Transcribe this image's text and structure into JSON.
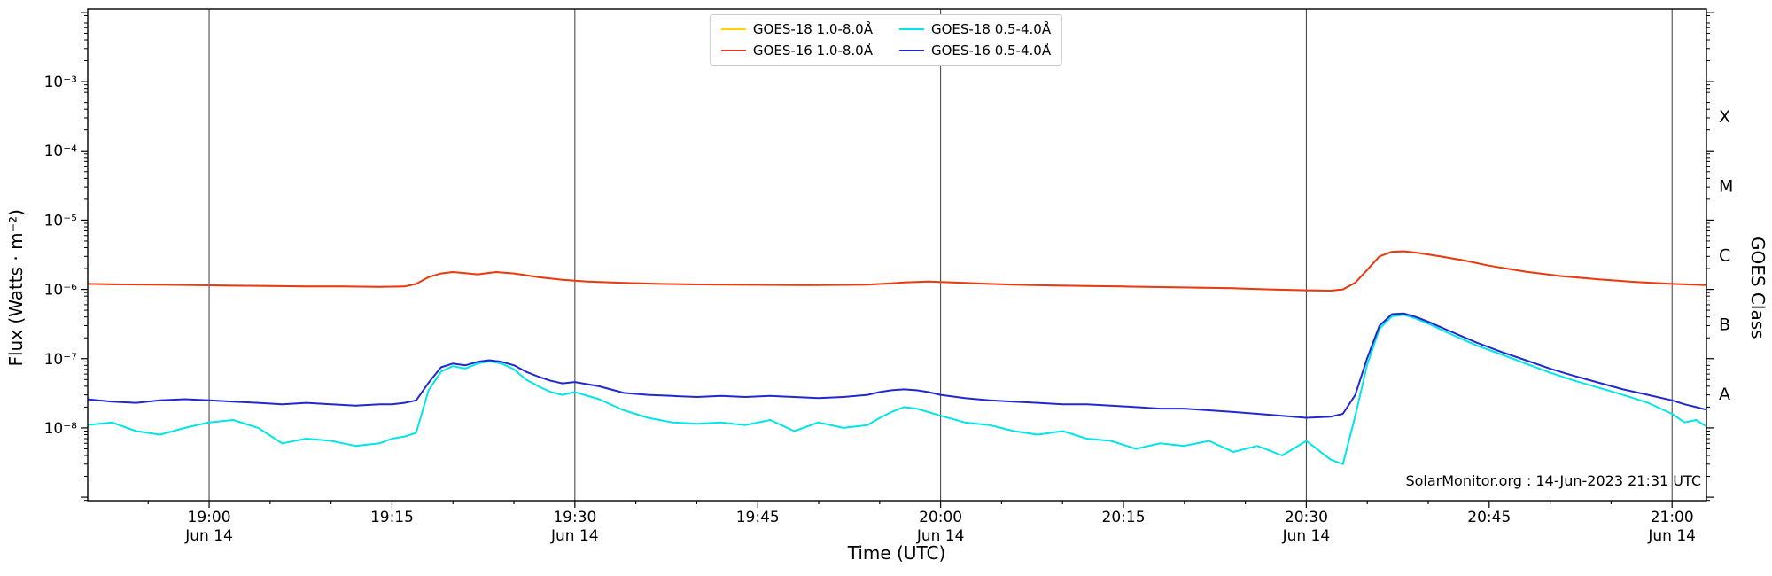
{
  "annotation": "SolarMonitor.org : 14-Jun-2023 21:31 UTC",
  "axes": {
    "x_label": "Time (UTC)",
    "y_label": "Flux (Watts · m⁻²)",
    "y_right_label": "GOES Class",
    "x_ticks": [
      {
        "t": 19.0,
        "label": "19:00",
        "sub": "Jun 14"
      },
      {
        "t": 19.25,
        "label": "19:15",
        "sub": ""
      },
      {
        "t": 19.5,
        "label": "19:30",
        "sub": "Jun 14"
      },
      {
        "t": 19.75,
        "label": "19:45",
        "sub": ""
      },
      {
        "t": 20.0,
        "label": "20:00",
        "sub": "Jun 14"
      },
      {
        "t": 20.25,
        "label": "20:15",
        "sub": ""
      },
      {
        "t": 20.5,
        "label": "20:30",
        "sub": "Jun 14"
      },
      {
        "t": 20.75,
        "label": "20:45",
        "sub": ""
      },
      {
        "t": 21.0,
        "label": "21:00",
        "sub": "Jun 14"
      }
    ],
    "y_ticks": [
      {
        "exp": -3,
        "label": "10⁻³"
      },
      {
        "exp": -4,
        "label": "10⁻⁴"
      },
      {
        "exp": -5,
        "label": "10⁻⁵"
      },
      {
        "exp": -6,
        "label": "10⁻⁶"
      },
      {
        "exp": -7,
        "label": "10⁻⁷"
      },
      {
        "exp": -8,
        "label": "10⁻⁸"
      }
    ],
    "class_labels": [
      {
        "label": "X",
        "exp_mid": -3.5
      },
      {
        "label": "M",
        "exp_mid": -4.5
      },
      {
        "label": "C",
        "exp_mid": -5.5
      },
      {
        "label": "B",
        "exp_mid": -6.5
      },
      {
        "label": "A",
        "exp_mid": -7.5
      }
    ]
  },
  "chart_data": {
    "type": "line",
    "title": "",
    "xlabel": "Time (UTC)",
    "ylabel": "Flux (Watts · m⁻²)",
    "x_unit": "decimal_hours_utc_14_jun_2023",
    "xlim_hours": [
      18.834,
      21.047
    ],
    "ylog_lim": [
      -9.05,
      -1.95
    ],
    "x_gridlines": [
      19.0,
      19.5,
      20.0,
      20.5,
      21.0
    ],
    "grid": "vertical-only",
    "legend_position": "top-center",
    "series": [
      {
        "name": "GOES-18 1.0-8.0Å",
        "color": "#ffd400",
        "x": [
          18.833,
          18.883,
          18.933,
          18.983,
          19.033,
          19.083,
          19.133,
          19.183,
          19.233,
          19.267,
          19.283,
          19.3,
          19.317,
          19.333,
          19.35,
          19.367,
          19.392,
          19.417,
          19.45,
          19.483,
          19.517,
          19.567,
          19.617,
          19.667,
          19.717,
          19.767,
          19.817,
          19.867,
          19.9,
          19.933,
          19.95,
          19.967,
          19.983,
          20.0,
          20.033,
          20.067,
          20.1,
          20.15,
          20.2,
          20.25,
          20.3,
          20.35,
          20.4,
          20.45,
          20.5,
          20.533,
          20.55,
          20.567,
          20.583,
          20.6,
          20.617,
          20.633,
          20.65,
          20.683,
          20.717,
          20.75,
          20.8,
          20.85,
          20.9,
          20.95,
          21.0,
          21.05
        ],
        "y": [
          1.2e-06,
          1.18e-06,
          1.17e-06,
          1.15e-06,
          1.13e-06,
          1.12e-06,
          1.1e-06,
          1.1e-06,
          1.09e-06,
          1.1e-06,
          1.2e-06,
          1.5e-06,
          1.7e-06,
          1.78e-06,
          1.72e-06,
          1.65e-06,
          1.78e-06,
          1.7e-06,
          1.5e-06,
          1.38e-06,
          1.3e-06,
          1.24e-06,
          1.2e-06,
          1.18e-06,
          1.17e-06,
          1.16e-06,
          1.15e-06,
          1.16e-06,
          1.17e-06,
          1.22e-06,
          1.26e-06,
          1.28e-06,
          1.3e-06,
          1.28e-06,
          1.24e-06,
          1.2e-06,
          1.17e-06,
          1.14e-06,
          1.12e-06,
          1.1e-06,
          1.08e-06,
          1.06e-06,
          1.04e-06,
          1e-06,
          9.7e-07,
          9.6e-07,
          1e-06,
          1.25e-06,
          1.9e-06,
          3e-06,
          3.5e-06,
          3.55e-06,
          3.4e-06,
          3e-06,
          2.6e-06,
          2.2e-06,
          1.8e-06,
          1.55e-06,
          1.4e-06,
          1.28e-06,
          1.2e-06,
          1.15e-06
        ]
      },
      {
        "name": "GOES-16 1.0-8.0Å",
        "color": "#e8391f",
        "x": [
          18.833,
          18.883,
          18.933,
          18.983,
          19.033,
          19.083,
          19.133,
          19.183,
          19.233,
          19.267,
          19.283,
          19.3,
          19.317,
          19.333,
          19.35,
          19.367,
          19.392,
          19.417,
          19.45,
          19.483,
          19.517,
          19.567,
          19.617,
          19.667,
          19.717,
          19.767,
          19.817,
          19.867,
          19.9,
          19.933,
          19.95,
          19.967,
          19.983,
          20.0,
          20.033,
          20.067,
          20.1,
          20.15,
          20.2,
          20.25,
          20.3,
          20.35,
          20.4,
          20.45,
          20.5,
          20.533,
          20.55,
          20.567,
          20.583,
          20.6,
          20.617,
          20.633,
          20.65,
          20.683,
          20.717,
          20.75,
          20.8,
          20.85,
          20.9,
          20.95,
          21.0,
          21.05
        ],
        "y": [
          1.2e-06,
          1.18e-06,
          1.17e-06,
          1.15e-06,
          1.13e-06,
          1.12e-06,
          1.1e-06,
          1.1e-06,
          1.09e-06,
          1.1e-06,
          1.2e-06,
          1.5e-06,
          1.7e-06,
          1.78e-06,
          1.72e-06,
          1.65e-06,
          1.78e-06,
          1.7e-06,
          1.5e-06,
          1.38e-06,
          1.3e-06,
          1.24e-06,
          1.2e-06,
          1.18e-06,
          1.17e-06,
          1.16e-06,
          1.15e-06,
          1.16e-06,
          1.17e-06,
          1.22e-06,
          1.26e-06,
          1.28e-06,
          1.3e-06,
          1.28e-06,
          1.24e-06,
          1.2e-06,
          1.17e-06,
          1.14e-06,
          1.12e-06,
          1.1e-06,
          1.08e-06,
          1.06e-06,
          1.04e-06,
          1e-06,
          9.7e-07,
          9.6e-07,
          1e-06,
          1.25e-06,
          1.9e-06,
          3e-06,
          3.5e-06,
          3.55e-06,
          3.4e-06,
          3e-06,
          2.6e-06,
          2.2e-06,
          1.8e-06,
          1.55e-06,
          1.4e-06,
          1.28e-06,
          1.2e-06,
          1.15e-06
        ]
      },
      {
        "name": "GOES-18 0.5-4.0Å",
        "color": "#00e5e5",
        "x": [
          18.833,
          18.867,
          18.9,
          18.933,
          18.967,
          19.0,
          19.033,
          19.067,
          19.1,
          19.133,
          19.167,
          19.2,
          19.233,
          19.25,
          19.267,
          19.283,
          19.3,
          19.317,
          19.333,
          19.35,
          19.367,
          19.383,
          19.4,
          19.417,
          19.433,
          19.45,
          19.467,
          19.483,
          19.5,
          19.533,
          19.567,
          19.6,
          19.633,
          19.667,
          19.7,
          19.733,
          19.767,
          19.8,
          19.833,
          19.867,
          19.9,
          19.917,
          19.933,
          19.95,
          19.967,
          19.983,
          20.0,
          20.033,
          20.067,
          20.1,
          20.133,
          20.167,
          20.2,
          20.233,
          20.267,
          20.3,
          20.333,
          20.367,
          20.4,
          20.433,
          20.467,
          20.5,
          20.533,
          20.55,
          20.567,
          20.583,
          20.6,
          20.617,
          20.633,
          20.65,
          20.667,
          20.7,
          20.733,
          20.767,
          20.8,
          20.833,
          20.867,
          20.9,
          20.933,
          20.967,
          21.0,
          21.017,
          21.033,
          21.05
        ],
        "y": [
          1.1e-08,
          1.2e-08,
          9e-09,
          8e-09,
          1e-08,
          1.2e-08,
          1.3e-08,
          1e-08,
          6e-09,
          7e-09,
          6.5e-09,
          5.5e-09,
          6e-09,
          7e-09,
          7.5e-09,
          8.5e-09,
          3.5e-08,
          6.5e-08,
          7.8e-08,
          7.2e-08,
          8.5e-08,
          9.2e-08,
          8.5e-08,
          7e-08,
          5e-08,
          4e-08,
          3.3e-08,
          3e-08,
          3.3e-08,
          2.6e-08,
          1.8e-08,
          1.4e-08,
          1.2e-08,
          1.15e-08,
          1.2e-08,
          1.1e-08,
          1.3e-08,
          9e-09,
          1.2e-08,
          1e-08,
          1.1e-08,
          1.4e-08,
          1.7e-08,
          2e-08,
          1.9e-08,
          1.7e-08,
          1.5e-08,
          1.2e-08,
          1.1e-08,
          9e-09,
          8e-09,
          9e-09,
          7e-09,
          6.5e-09,
          5e-09,
          6e-09,
          5.5e-09,
          6.5e-09,
          4.5e-09,
          5.5e-09,
          4e-09,
          6.5e-09,
          3.5e-09,
          3e-09,
          1.5e-08,
          8e-08,
          2.7e-07,
          4.1e-07,
          4.3e-07,
          3.8e-07,
          3.2e-07,
          2.2e-07,
          1.55e-07,
          1.15e-07,
          8.5e-08,
          6.3e-08,
          4.8e-08,
          3.8e-08,
          3e-08,
          2.3e-08,
          1.6e-08,
          1.2e-08,
          1.3e-08,
          1e-08
        ]
      },
      {
        "name": "GOES-16 0.5-4.0Å",
        "color": "#2228cf",
        "x": [
          18.833,
          18.867,
          18.9,
          18.933,
          18.967,
          19.0,
          19.033,
          19.067,
          19.1,
          19.133,
          19.167,
          19.2,
          19.233,
          19.25,
          19.267,
          19.283,
          19.3,
          19.317,
          19.333,
          19.35,
          19.367,
          19.383,
          19.4,
          19.417,
          19.433,
          19.45,
          19.467,
          19.483,
          19.5,
          19.533,
          19.567,
          19.6,
          19.633,
          19.667,
          19.7,
          19.733,
          19.767,
          19.8,
          19.833,
          19.867,
          19.9,
          19.917,
          19.933,
          19.95,
          19.967,
          19.983,
          20.0,
          20.033,
          20.067,
          20.1,
          20.133,
          20.167,
          20.2,
          20.233,
          20.267,
          20.3,
          20.333,
          20.367,
          20.4,
          20.433,
          20.467,
          20.5,
          20.533,
          20.55,
          20.567,
          20.583,
          20.6,
          20.617,
          20.633,
          20.65,
          20.667,
          20.7,
          20.733,
          20.767,
          20.8,
          20.833,
          20.867,
          20.9,
          20.933,
          20.967,
          21.0,
          21.017,
          21.033,
          21.05
        ],
        "y": [
          2.6e-08,
          2.4e-08,
          2.3e-08,
          2.5e-08,
          2.6e-08,
          2.5e-08,
          2.4e-08,
          2.3e-08,
          2.2e-08,
          2.3e-08,
          2.2e-08,
          2.1e-08,
          2.2e-08,
          2.2e-08,
          2.3e-08,
          2.5e-08,
          4.5e-08,
          7.5e-08,
          8.5e-08,
          8e-08,
          9e-08,
          9.5e-08,
          9e-08,
          8e-08,
          6.5e-08,
          5.5e-08,
          4.8e-08,
          4.4e-08,
          4.6e-08,
          4e-08,
          3.2e-08,
          3e-08,
          2.9e-08,
          2.8e-08,
          2.9e-08,
          2.8e-08,
          2.9e-08,
          2.8e-08,
          2.7e-08,
          2.8e-08,
          3e-08,
          3.3e-08,
          3.5e-08,
          3.6e-08,
          3.5e-08,
          3.3e-08,
          3e-08,
          2.7e-08,
          2.5e-08,
          2.4e-08,
          2.3e-08,
          2.2e-08,
          2.2e-08,
          2.1e-08,
          2e-08,
          1.9e-08,
          1.9e-08,
          1.8e-08,
          1.7e-08,
          1.6e-08,
          1.5e-08,
          1.4e-08,
          1.45e-08,
          1.6e-08,
          3e-08,
          1e-07,
          3e-07,
          4.4e-07,
          4.5e-07,
          4e-07,
          3.4e-07,
          2.4e-07,
          1.7e-07,
          1.25e-07,
          9.5e-08,
          7.2e-08,
          5.6e-08,
          4.5e-08,
          3.6e-08,
          3e-08,
          2.5e-08,
          2.2e-08,
          2e-08,
          1.8e-08
        ]
      }
    ]
  }
}
